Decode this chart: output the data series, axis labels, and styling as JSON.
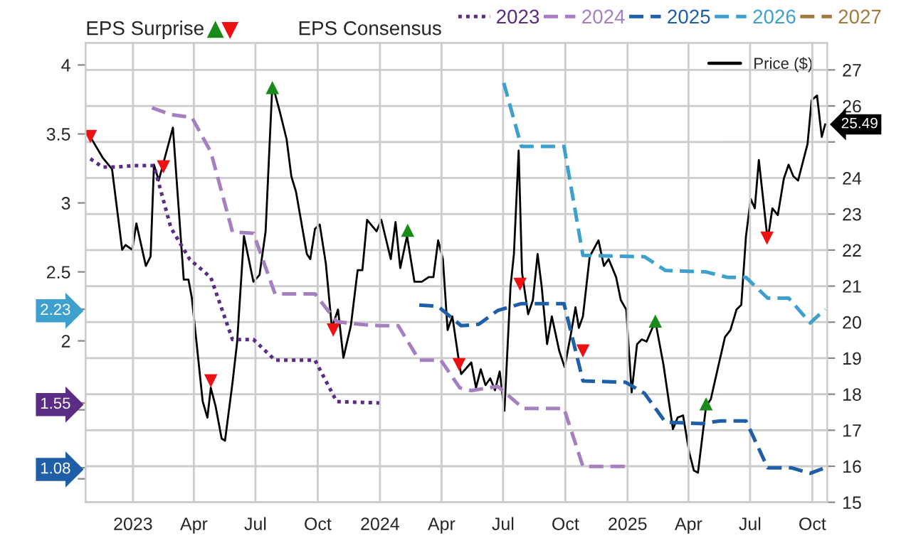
{
  "chart_data": {
    "type": "line",
    "annotations": [
      "EPS Surprise"
    ],
    "legend_title": "EPS Consensus",
    "legend": "top",
    "grid": true,
    "xlim": [
      "2022-10-23",
      "2025-10-23"
    ],
    "xticks": [
      {
        "value": "2023-01-01",
        "label": "2023"
      },
      {
        "value": "2023-04-01",
        "label": "Apr"
      },
      {
        "value": "2023-07-01",
        "label": "Jul"
      },
      {
        "value": "2023-10-01",
        "label": "Oct"
      },
      {
        "value": "2024-01-01",
        "label": "2024"
      },
      {
        "value": "2024-04-01",
        "label": "Apr"
      },
      {
        "value": "2024-07-01",
        "label": "Jul"
      },
      {
        "value": "2024-10-01",
        "label": "Oct"
      },
      {
        "value": "2025-01-01",
        "label": "2025"
      },
      {
        "value": "2025-04-01",
        "label": "Apr"
      },
      {
        "value": "2025-07-01",
        "label": "Jul"
      },
      {
        "value": "2025-10-01",
        "label": "Oct"
      }
    ],
    "ylim": [
      0.83,
      4.16
    ],
    "yticks": [
      {
        "value": 1,
        "label": null
      },
      1.08,
      {
        "value": 1.5,
        "label": null
      },
      1.55,
      2,
      2.23,
      2.5,
      3,
      3.5,
      4
    ],
    "y2lim": [
      15,
      27.75
    ],
    "y2ticks": [
      15,
      16,
      17,
      18,
      19,
      20,
      21,
      22,
      23,
      24,
      {
        "value": 25,
        "label": null
      },
      26,
      27
    ],
    "series": [
      {
        "name": "2023",
        "color": "#5b2c83",
        "line_style": "dotted",
        "x": [
          "2022-10-30",
          "2022-11-17",
          "2022-12-08",
          "2023-01-01",
          "2023-02-01",
          "2023-02-26",
          "2023-03-26",
          "2023-04-26",
          "2023-05-28",
          "2023-06-28",
          "2023-07-30",
          "2023-09-27",
          "2023-10-29",
          "2023-12-31"
        ],
        "values": [
          3.32,
          3.26,
          3.26,
          3.27,
          3.27,
          2.82,
          2.59,
          2.46,
          2.01,
          2.01,
          1.86,
          1.86,
          1.56,
          1.55
        ]
      },
      {
        "name": "2024",
        "color": "#a57fc0",
        "line_style": "dashed",
        "x": [
          "2023-01-29",
          "2023-02-26",
          "2023-03-29",
          "2023-04-26",
          "2023-05-28",
          "2023-06-28",
          "2023-07-30",
          "2023-09-27",
          "2023-10-29",
          "2023-12-02",
          "2023-12-31",
          "2024-01-28",
          "2024-02-28",
          "2024-03-31",
          "2024-04-28",
          "2024-05-15",
          "2024-06-23",
          "2024-07-31",
          "2024-09-29",
          "2024-10-27",
          "2024-12-29"
        ],
        "values": [
          3.69,
          3.64,
          3.62,
          3.37,
          2.79,
          2.78,
          2.34,
          2.34,
          2.14,
          2.12,
          2.11,
          2.11,
          1.86,
          1.86,
          1.66,
          1.64,
          1.67,
          1.51,
          1.51,
          1.09,
          1.09
        ]
      },
      {
        "name": "2025",
        "color": "#1f5fa8",
        "line_style": "dashed",
        "x": [
          "2024-02-28",
          "2024-03-27",
          "2024-04-30",
          "2024-05-26",
          "2024-06-23",
          "2024-07-28",
          "2024-09-29",
          "2024-10-27",
          "2024-12-29",
          "2025-01-26",
          "2025-02-26",
          "2025-04-20",
          "2025-05-18",
          "2025-06-25",
          "2025-07-27",
          "2025-08-31",
          "2025-09-28",
          "2025-10-20"
        ],
        "values": [
          2.26,
          2.25,
          2.11,
          2.12,
          2.22,
          2.27,
          2.27,
          1.71,
          1.7,
          1.62,
          1.41,
          1.4,
          1.42,
          1.42,
          1.08,
          1.08,
          1.04,
          1.08
        ]
      },
      {
        "name": "2026",
        "color": "#3ea0cc",
        "line_style": "dashed",
        "x": [
          "2024-07-02",
          "2024-07-28",
          "2024-09-29",
          "2024-10-27",
          "2025-01-26",
          "2025-02-26",
          "2025-04-27",
          "2025-05-29",
          "2025-06-25",
          "2025-07-27",
          "2025-08-27",
          "2025-09-28",
          "2025-10-20"
        ],
        "values": [
          3.87,
          3.41,
          3.41,
          2.62,
          2.61,
          2.51,
          2.5,
          2.46,
          2.46,
          2.31,
          2.31,
          2.13,
          2.23
        ]
      },
      {
        "name": "2027",
        "color": "#a07a3f",
        "line_style": "dashed"
      },
      {
        "name": "Price ($)",
        "color": "#000000",
        "line_style": "solid",
        "axis": "y2",
        "x": [
          "2022-10-30",
          "2022-11-17",
          "2022-12-01",
          "2022-12-16",
          "2022-12-21",
          "2022-12-31",
          "2023-01-06",
          "2023-01-20",
          "2023-01-27",
          "2023-02-01",
          "2023-02-08",
          "2023-03-01",
          "2023-03-17",
          "2023-03-24",
          "2023-03-29",
          "2023-04-14",
          "2023-04-21",
          "2023-04-26",
          "2023-05-03",
          "2023-05-12",
          "2023-05-17",
          "2023-05-28",
          "2023-06-04",
          "2023-06-14",
          "2023-06-28",
          "2023-07-07",
          "2023-07-16",
          "2023-07-26",
          "2023-08-06",
          "2023-08-16",
          "2023-08-23",
          "2023-08-30",
          "2023-09-15",
          "2023-09-20",
          "2023-09-27",
          "2023-10-04",
          "2023-10-13",
          "2023-10-22",
          "2023-10-31",
          "2023-11-08",
          "2023-11-19",
          "2023-11-29",
          "2023-12-06",
          "2023-12-13",
          "2023-12-27",
          "2024-01-03",
          "2024-01-17",
          "2024-01-24",
          "2024-01-31",
          "2024-02-10",
          "2024-02-21",
          "2024-03-03",
          "2024-03-13",
          "2024-03-20",
          "2024-03-27",
          "2024-04-03",
          "2024-04-10",
          "2024-04-17",
          "2024-04-28",
          "2024-04-30",
          "2024-05-15",
          "2024-05-22",
          "2024-05-29",
          "2024-06-05",
          "2024-06-12",
          "2024-06-19",
          "2024-06-26",
          "2024-07-03",
          "2024-07-12",
          "2024-07-17",
          "2024-07-24",
          "2024-07-29",
          "2024-08-07",
          "2024-08-14",
          "2024-08-21",
          "2024-08-27",
          "2024-09-04",
          "2024-09-11",
          "2024-09-22",
          "2024-09-30",
          "2024-10-09",
          "2024-10-16",
          "2024-10-21",
          "2024-10-27",
          "2024-11-06",
          "2024-11-19",
          "2024-11-27",
          "2024-12-04",
          "2024-12-15",
          "2024-12-22",
          "2024-12-30",
          "2025-01-07",
          "2025-01-15",
          "2025-01-22",
          "2025-01-29",
          "2025-02-11",
          "2025-02-23",
          "2025-03-09",
          "2025-03-16",
          "2025-03-24",
          "2025-04-02",
          "2025-04-09",
          "2025-04-15",
          "2025-04-27",
          "2025-05-04",
          "2025-05-14",
          "2025-05-25",
          "2025-06-02",
          "2025-06-11",
          "2025-06-18",
          "2025-06-25",
          "2025-07-02",
          "2025-07-08",
          "2025-07-14",
          "2025-07-27",
          "2025-08-03",
          "2025-08-11",
          "2025-08-20",
          "2025-08-27",
          "2025-09-03",
          "2025-09-10",
          "2025-09-17",
          "2025-09-24",
          "2025-09-30",
          "2025-10-08",
          "2025-10-15",
          "2025-10-20"
        ],
        "values": [
          25.14,
          24.57,
          24.25,
          22.01,
          22.14,
          22.01,
          22.74,
          21.56,
          21.82,
          24.37,
          23.93,
          25.4,
          21.18,
          21.18,
          20.67,
          17.8,
          17.35,
          18.18,
          17.67,
          16.77,
          16.71,
          18.31,
          19.46,
          22.39,
          21.12,
          21.31,
          22.52,
          26.61,
          25.84,
          25.08,
          24.05,
          23.61,
          21.89,
          21.75,
          22.59,
          22.71,
          21.63,
          19.84,
          20.35,
          19.01,
          19.9,
          21.44,
          21.44,
          22.84,
          22.52,
          22.84,
          21.75,
          22.78,
          21.5,
          22.39,
          21.12,
          21.12,
          21.25,
          21.25,
          22.27,
          21.75,
          19.78,
          20.16,
          18.75,
          18.56,
          18.88,
          18.18,
          18.69,
          18.25,
          18.44,
          18.11,
          18.63,
          17.54,
          20.99,
          21.89,
          24.76,
          21.37,
          20.22,
          20.61,
          21.89,
          20.99,
          19.39,
          20.16,
          19.2,
          18.75,
          19.65,
          20.41,
          19.84,
          20.16,
          21.82,
          22.27,
          21.56,
          21.75,
          21.25,
          20.61,
          20.35,
          18.05,
          19.39,
          19.52,
          19.46,
          20.03,
          18.82,
          17.03,
          17.35,
          17.41,
          16.39,
          15.88,
          15.82,
          17.67,
          17.86,
          18.69,
          19.59,
          19.78,
          20.35,
          20.48,
          22.39,
          23.42,
          23.16,
          24.5,
          22.27,
          23.16,
          22.97,
          23.99,
          24.37,
          24.05,
          23.93,
          24.44,
          24.95,
          26.16,
          26.29,
          25.14,
          25.49
        ],
        "value_labels": [
          null,
          null,
          null,
          null,
          null,
          null,
          null,
          null,
          null,
          null,
          null,
          null,
          null,
          null,
          null,
          null,
          null,
          null,
          null,
          null,
          null,
          null,
          null,
          null,
          null,
          null,
          null,
          null,
          null,
          null,
          null,
          null,
          null,
          null,
          null,
          null,
          null,
          null,
          null,
          null,
          null,
          null,
          null,
          null,
          null,
          null,
          null,
          null,
          null,
          null,
          null,
          null,
          null,
          null,
          null,
          null,
          null,
          null,
          null,
          null,
          null,
          null,
          null,
          null,
          null,
          null,
          null,
          null,
          null,
          null,
          null,
          null,
          null,
          null,
          null,
          null,
          null,
          null,
          null,
          null,
          null,
          null,
          null,
          null,
          null,
          null,
          null,
          null,
          null,
          null,
          null,
          null,
          null,
          null,
          null,
          null,
          null,
          null,
          null,
          null,
          null,
          null,
          null,
          null,
          null,
          null,
          null,
          null,
          null,
          null,
          null,
          null,
          null,
          null,
          null,
          null,
          null,
          null,
          null,
          null,
          null,
          null,
          null,
          null,
          null,
          null,
          "25.49"
        ]
      },
      {
        "type": "scatter",
        "axis": "y2",
        "color": "#1a8a1a",
        "marker": "triangle",
        "x": [
          "2023-07-26",
          "2024-02-11",
          "2025-02-11",
          "2025-04-27"
        ],
        "values": [
          26.51,
          22.55,
          20.03,
          17.73
        ]
      },
      {
        "type": "scatter",
        "axis": "y2",
        "color": "#ee1111",
        "marker": "triangle_down",
        "x": [
          "2022-10-30",
          "2023-02-15",
          "2023-04-26",
          "2023-10-24",
          "2024-04-27",
          "2024-07-26",
          "2024-10-27",
          "2025-07-26"
        ],
        "values": [
          25.15,
          24.31,
          18.37,
          19.78,
          18.82,
          21.05,
          19.2,
          22.33
        ]
      }
    ]
  }
}
